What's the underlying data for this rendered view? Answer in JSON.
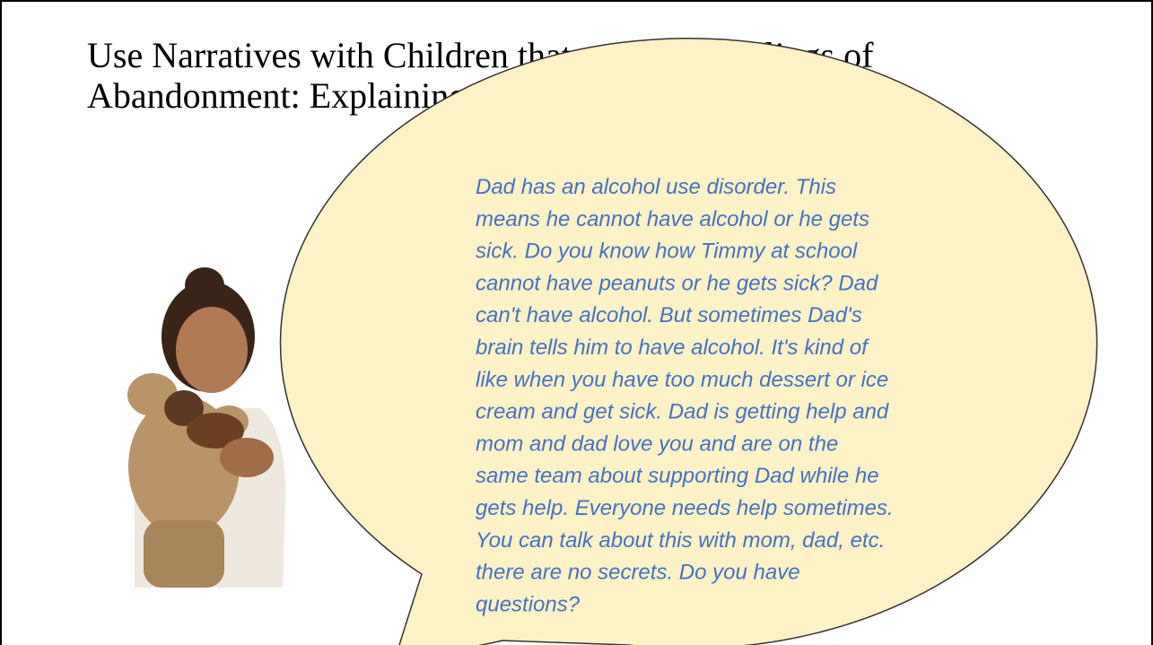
{
  "slide": {
    "title_lines": [
      "Use Narratives with Children that mitigates  feelings of",
      "Abandonment: Explaining SUD to Kids"
    ],
    "bubble_lines": [
      "Dad has an alcohol use disorder. This",
      "means he cannot have alcohol or he gets",
      "sick. Do you know how Timmy at school",
      "cannot have peanuts or he gets sick? Dad",
      "can't have alcohol. But sometimes Dad's",
      "brain tells him to have alcohol. It's kind of",
      "like when you have too much dessert or ice",
      "cream and get sick. Dad is getting help and",
      "mom and dad love you and are on the",
      "same team about supporting Dad while he",
      "gets help. Everyone needs help sometimes.",
      "You can talk about this with mom, dad, etc.",
      "there are no secrets. Do you have",
      "questions?"
    ]
  }
}
